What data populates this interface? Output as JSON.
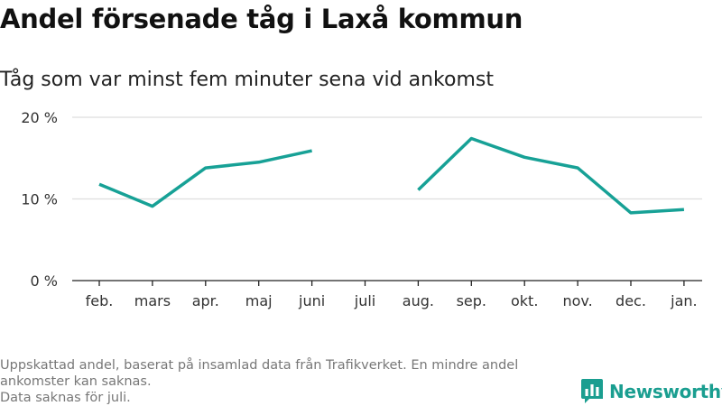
{
  "title": "Andel försenade tåg i Laxå kommun",
  "subtitle": "Tåg som var minst fem minuter sena vid ankomst",
  "footnote": {
    "line1": "Uppskattad andel, baserat på insamlad data från Trafikverket. En mindre andel",
    "line2": "ankomster kan saknas.",
    "line3": "Data saknas för juli."
  },
  "brand": {
    "name": "Newsworthy",
    "color": "#1a9e90",
    "icon": "bar-chart-logo-icon"
  },
  "colors": {
    "line": "#17a196",
    "grid": "#dddddd",
    "axis": "#222222"
  },
  "chart_data": {
    "type": "line",
    "title": "Andel försenade tåg i Laxå kommun",
    "subtitle": "Tåg som var minst fem minuter sena vid ankomst",
    "xlabel": "",
    "ylabel": "",
    "categories": [
      "feb.",
      "mars",
      "apr.",
      "maj",
      "juni",
      "juli",
      "aug.",
      "sep.",
      "okt.",
      "nov.",
      "dec.",
      "jan."
    ],
    "series": [
      {
        "values": [
          11.8,
          9.1,
          13.8,
          14.5,
          15.9,
          null,
          11.1,
          17.4,
          15.1,
          13.8,
          8.3,
          8.7
        ]
      }
    ],
    "y_ticks": [
      0,
      10,
      20
    ],
    "y_tick_labels": [
      "0 %",
      "10 %",
      "20 %"
    ],
    "ylim": [
      0,
      20
    ],
    "grid": true,
    "legend": "none"
  }
}
